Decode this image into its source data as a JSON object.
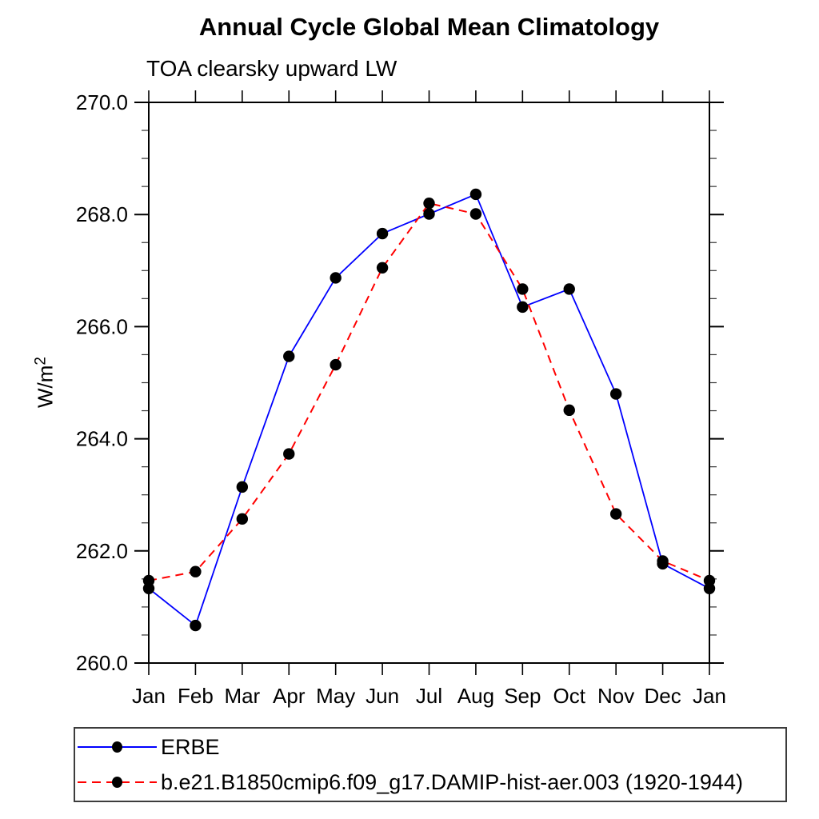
{
  "title": "Annual Cycle Global Mean Climatology",
  "subtitle": "TOA clearsky upward LW",
  "chart_data": {
    "type": "line",
    "title": "Annual Cycle Global Mean Climatology",
    "subtitle": "TOA clearsky upward LW",
    "xlabel": "",
    "ylabel_base": "W/m",
    "ylabel_sup": "2",
    "x_categories": [
      "Jan",
      "Feb",
      "Mar",
      "Apr",
      "May",
      "Jun",
      "Jul",
      "Aug",
      "Sep",
      "Oct",
      "Nov",
      "Dec",
      "Jan"
    ],
    "ylim": [
      260.0,
      270.0
    ],
    "y_major_ticks": [
      "260.0",
      "262.0",
      "264.0",
      "266.0",
      "268.0",
      "270.0"
    ],
    "y_major_values": [
      260,
      262,
      264,
      266,
      268,
      270
    ],
    "y_minor_step": 0.5,
    "grid": false,
    "legend_position": "bottom-left-box",
    "series": [
      {
        "name": "ERBE",
        "color": "#0000ff",
        "style": "solid",
        "marker": "circle",
        "marker_color": "#000000",
        "values": [
          261.33,
          260.67,
          263.14,
          265.47,
          266.87,
          267.66,
          268.01,
          268.36,
          266.35,
          266.67,
          264.8,
          261.77,
          261.33
        ]
      },
      {
        "name": "b.e21.B1850cmip6.f09_g17.DAMIP-hist-aer.003 (1920-1944)",
        "color": "#ff0000",
        "style": "dashed",
        "marker": "circle",
        "marker_color": "#000000",
        "values": [
          261.47,
          261.63,
          262.57,
          263.73,
          265.32,
          267.05,
          268.2,
          268.01,
          266.67,
          264.51,
          262.66,
          261.82,
          261.47
        ]
      }
    ]
  },
  "colors": {
    "background": "#ffffff",
    "axis": "#000000",
    "series1": "#0000ff",
    "series2": "#ff0000",
    "marker": "#000000",
    "legend_border": "#3c3c3c"
  }
}
